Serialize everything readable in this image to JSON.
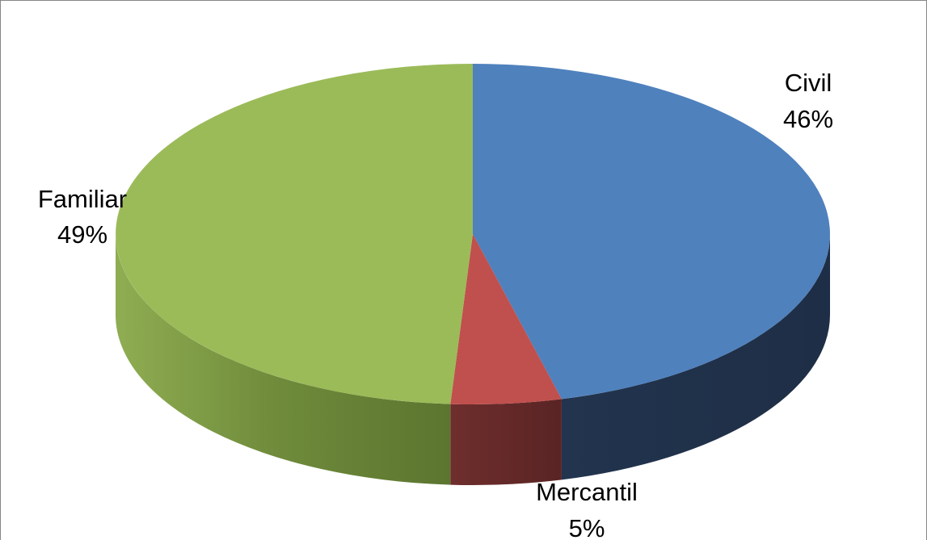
{
  "chart_data": {
    "type": "pie",
    "title": "",
    "style": "3d-pie",
    "legend": "none",
    "slices": [
      {
        "name": "Civil",
        "value": 46,
        "label": "46%",
        "color": "#4F81BD",
        "side_color": "#22344E"
      },
      {
        "name": "Mercantil",
        "value": 5,
        "label": "5%",
        "color": "#C0504D",
        "side_color": "#63292A"
      },
      {
        "name": "Familiar",
        "value": 49,
        "label": "49%",
        "color": "#9BBB59",
        "side_color": "#6A8238"
      }
    ]
  }
}
